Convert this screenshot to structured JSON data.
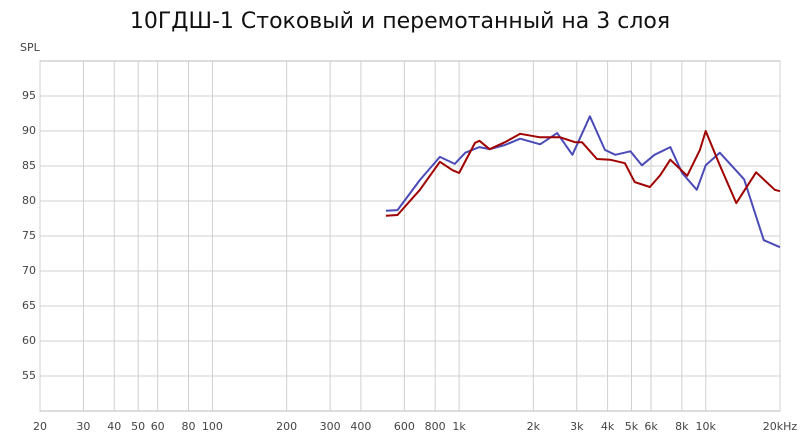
{
  "chart_data": {
    "type": "line",
    "title": "10ГДШ-1 Стоковый и перемотанный на 3 слоя",
    "y_label": "SPL",
    "xscale": "log",
    "xlim": [
      20,
      20000
    ],
    "ylim": [
      50,
      100
    ],
    "xticks": [
      20,
      30,
      40,
      50,
      60,
      80,
      100,
      200,
      300,
      400,
      600,
      800,
      {
        "value": 1000,
        "label": "1k"
      },
      {
        "value": 2000,
        "label": "2k"
      },
      {
        "value": 3000,
        "label": "3k"
      },
      {
        "value": 4000,
        "label": "4k"
      },
      {
        "value": 5000,
        "label": "5k"
      },
      {
        "value": 6000,
        "label": "6k"
      },
      {
        "value": 8000,
        "label": "8k"
      },
      {
        "value": 10000,
        "label": "10k"
      },
      {
        "value": 20000,
        "label": "20kHz"
      }
    ],
    "yticks": [
      55,
      60,
      65,
      70,
      75,
      80,
      85,
      90,
      95
    ],
    "grid": true,
    "series": [
      {
        "color": "#4b4bb8",
        "x": [
          505,
          563,
          694,
          836,
          960,
          1060,
          1210,
          1330,
          1535,
          1770,
          2130,
          2500,
          2880,
          3390,
          3900,
          4300,
          4950,
          5510,
          6200,
          7180,
          8020,
          9200,
          10000,
          11400,
          14300,
          17200,
          20000
        ],
        "values": [
          78.6,
          78.7,
          83,
          86.3,
          85.3,
          86.9,
          87.7,
          87.4,
          88,
          88.9,
          88.1,
          89.7,
          86.6,
          92.1,
          87.3,
          86.6,
          87.1,
          85.1,
          86.6,
          87.7,
          84,
          81.6,
          85.1,
          86.9,
          83.1,
          74.4,
          73.4
        ]
      },
      {
        "color": "#a00000",
        "x": [
          505,
          563,
          694,
          836,
          940,
          1000,
          1160,
          1210,
          1330,
          1535,
          1770,
          2130,
          2570,
          2950,
          3150,
          3620,
          4090,
          4700,
          5150,
          5940,
          6540,
          7180,
          8410,
          9470,
          10000,
          11400,
          13300,
          16000,
          19060,
          20000
        ],
        "values": [
          77.9,
          78,
          81.6,
          85.6,
          84.4,
          84,
          88.3,
          88.6,
          87.4,
          88.4,
          89.6,
          89.1,
          89.1,
          88.4,
          88.4,
          86,
          85.9,
          85.4,
          82.7,
          82,
          83.7,
          85.9,
          83.6,
          87.3,
          90,
          85.1,
          79.7,
          84.1,
          81.6,
          81.4
        ]
      }
    ]
  }
}
